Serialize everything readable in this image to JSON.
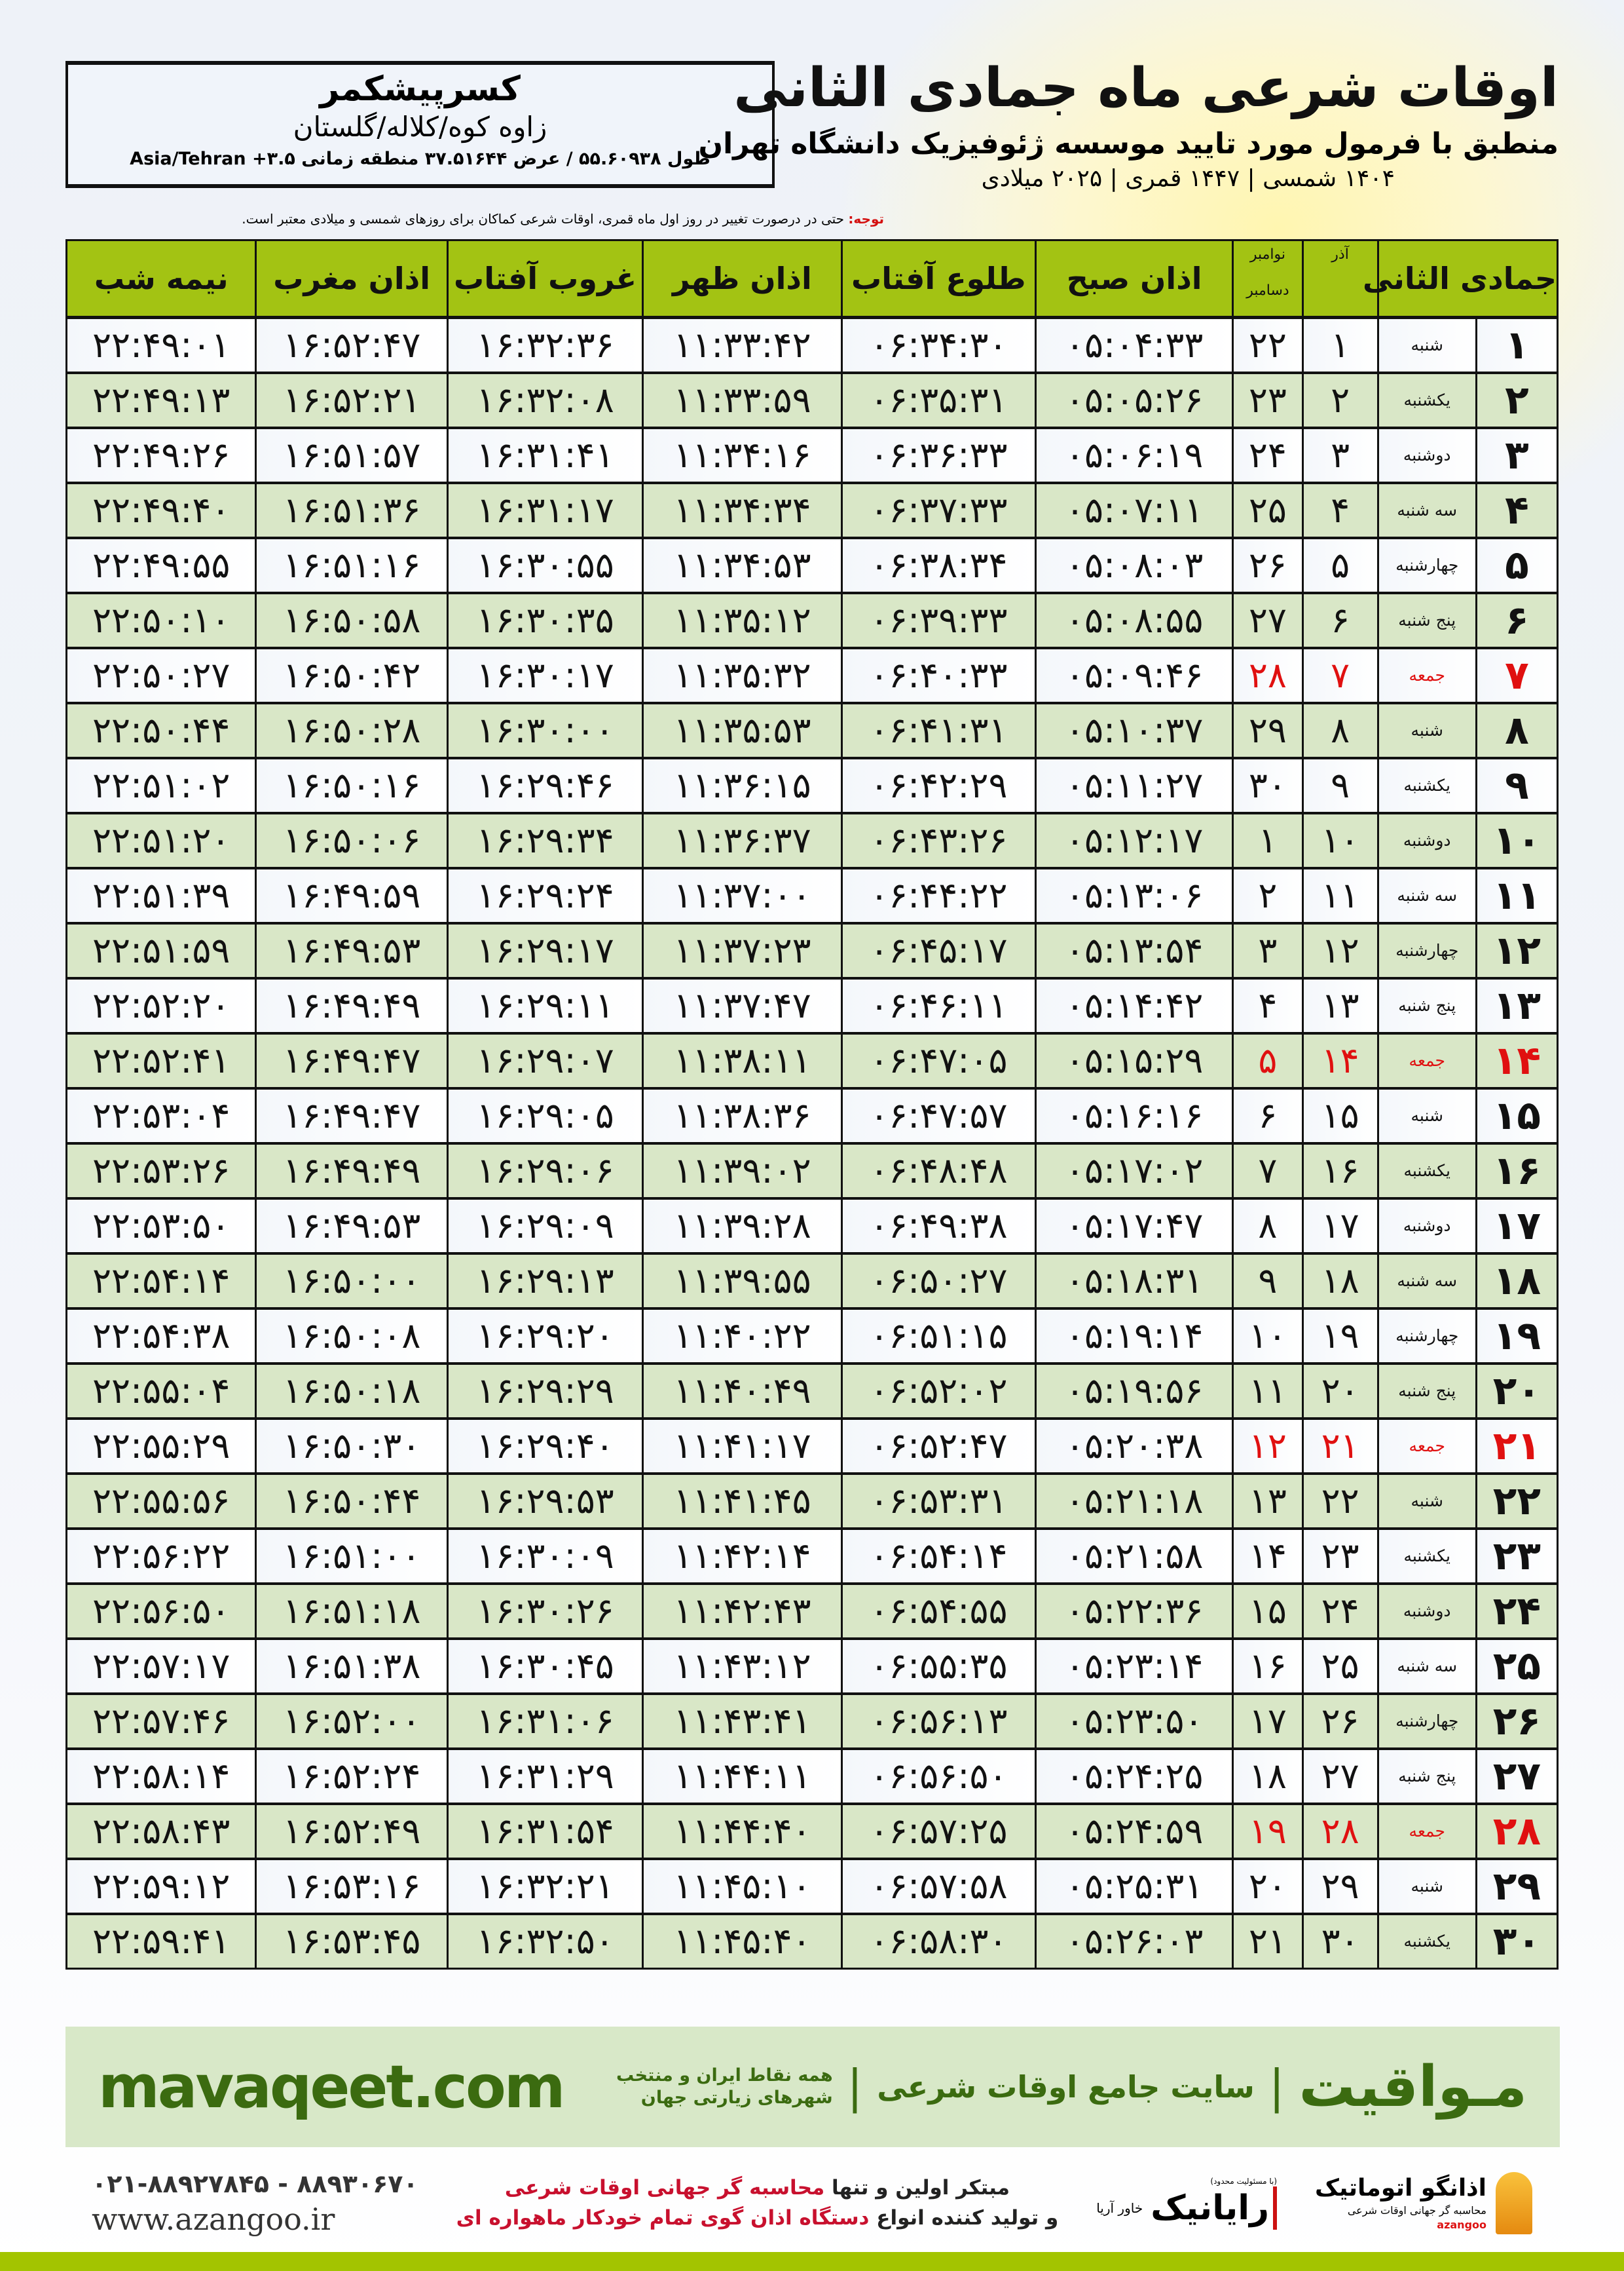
{
  "header": {
    "title": "اوقات شرعی ماه جمادی الثانی",
    "subtitle": "منطبق با فرمول مورد تایید موسسه ژئوفیزیک دانشگاه تهران",
    "years": "۱۴۰۴ شمسی | ۱۴۴۷ قمری | ۲۰۲۵ میلادی"
  },
  "location": {
    "city": "کسرپیشکمر",
    "region": "زاوه کوه/کلاله/گلستان",
    "coords": "طول ۵۵.۶۰۹۳۸ / عرض ۳۷.۵۱۶۴۴ منطقه زمانی ۳.۵+ Asia/Tehran"
  },
  "note": {
    "label": "توجه:",
    "text": " حتی در درصورت تغییر در روز اول ماه قمری، اوقات شرعی کماکان برای روزهای شمسی و میلادی معتبر است."
  },
  "columns": {
    "hijri": "جمادی الثانی",
    "azar": "آذر",
    "greg_top": "نوامبر",
    "greg_bottom": "دسامبر",
    "fajr": "اذان صبح",
    "sunrise": "طلوع آفتاب",
    "dhuhr": "اذان ظهر",
    "sunset": "غروب آفتاب",
    "maghrib": "اذان مغرب",
    "midnight": "نیمه شب"
  },
  "holiday_weekday": "جمعه",
  "colors": {
    "header_green": "#a3c313",
    "row_green": "#d9e7c7",
    "holiday_red": "#e01010",
    "brand_green": "#3b6b10"
  },
  "rows": [
    [
      "۱",
      "شنبه",
      "۱",
      "۲۲",
      "۰۵:۰۴:۳۳",
      "۰۶:۳۴:۳۰",
      "۱۱:۳۳:۴۲",
      "۱۶:۳۲:۳۶",
      "۱۶:۵۲:۴۷",
      "۲۲:۴۹:۰۱"
    ],
    [
      "۲",
      "یکشنبه",
      "۲",
      "۲۳",
      "۰۵:۰۵:۲۶",
      "۰۶:۳۵:۳۱",
      "۱۱:۳۳:۵۹",
      "۱۶:۳۲:۰۸",
      "۱۶:۵۲:۲۱",
      "۲۲:۴۹:۱۳"
    ],
    [
      "۳",
      "دوشنبه",
      "۳",
      "۲۴",
      "۰۵:۰۶:۱۹",
      "۰۶:۳۶:۳۳",
      "۱۱:۳۴:۱۶",
      "۱۶:۳۱:۴۱",
      "۱۶:۵۱:۵۷",
      "۲۲:۴۹:۲۶"
    ],
    [
      "۴",
      "سه شنبه",
      "۴",
      "۲۵",
      "۰۵:۰۷:۱۱",
      "۰۶:۳۷:۳۳",
      "۱۱:۳۴:۳۴",
      "۱۶:۳۱:۱۷",
      "۱۶:۵۱:۳۶",
      "۲۲:۴۹:۴۰"
    ],
    [
      "۵",
      "چهارشنبه",
      "۵",
      "۲۶",
      "۰۵:۰۸:۰۳",
      "۰۶:۳۸:۳۴",
      "۱۱:۳۴:۵۳",
      "۱۶:۳۰:۵۵",
      "۱۶:۵۱:۱۶",
      "۲۲:۴۹:۵۵"
    ],
    [
      "۶",
      "پنج شنبه",
      "۶",
      "۲۷",
      "۰۵:۰۸:۵۵",
      "۰۶:۳۹:۳۳",
      "۱۱:۳۵:۱۲",
      "۱۶:۳۰:۳۵",
      "۱۶:۵۰:۵۸",
      "۲۲:۵۰:۱۰"
    ],
    [
      "۷",
      "جمعه",
      "۷",
      "۲۸",
      "۰۵:۰۹:۴۶",
      "۰۶:۴۰:۳۳",
      "۱۱:۳۵:۳۲",
      "۱۶:۳۰:۱۷",
      "۱۶:۵۰:۴۲",
      "۲۲:۵۰:۲۷"
    ],
    [
      "۸",
      "شنبه",
      "۸",
      "۲۹",
      "۰۵:۱۰:۳۷",
      "۰۶:۴۱:۳۱",
      "۱۱:۳۵:۵۳",
      "۱۶:۳۰:۰۰",
      "۱۶:۵۰:۲۸",
      "۲۲:۵۰:۴۴"
    ],
    [
      "۹",
      "یکشنبه",
      "۹",
      "۳۰",
      "۰۵:۱۱:۲۷",
      "۰۶:۴۲:۲۹",
      "۱۱:۳۶:۱۵",
      "۱۶:۲۹:۴۶",
      "۱۶:۵۰:۱۶",
      "۲۲:۵۱:۰۲"
    ],
    [
      "۱۰",
      "دوشنبه",
      "۱۰",
      "۱",
      "۰۵:۱۲:۱۷",
      "۰۶:۴۳:۲۶",
      "۱۱:۳۶:۳۷",
      "۱۶:۲۹:۳۴",
      "۱۶:۵۰:۰۶",
      "۲۲:۵۱:۲۰"
    ],
    [
      "۱۱",
      "سه شنبه",
      "۱۱",
      "۲",
      "۰۵:۱۳:۰۶",
      "۰۶:۴۴:۲۲",
      "۱۱:۳۷:۰۰",
      "۱۶:۲۹:۲۴",
      "۱۶:۴۹:۵۹",
      "۲۲:۵۱:۳۹"
    ],
    [
      "۱۲",
      "چهارشنبه",
      "۱۲",
      "۳",
      "۰۵:۱۳:۵۴",
      "۰۶:۴۵:۱۷",
      "۱۱:۳۷:۲۳",
      "۱۶:۲۹:۱۷",
      "۱۶:۴۹:۵۳",
      "۲۲:۵۱:۵۹"
    ],
    [
      "۱۳",
      "پنج شنبه",
      "۱۳",
      "۴",
      "۰۵:۱۴:۴۲",
      "۰۶:۴۶:۱۱",
      "۱۱:۳۷:۴۷",
      "۱۶:۲۹:۱۱",
      "۱۶:۴۹:۴۹",
      "۲۲:۵۲:۲۰"
    ],
    [
      "۱۴",
      "جمعه",
      "۱۴",
      "۵",
      "۰۵:۱۵:۲۹",
      "۰۶:۴۷:۰۵",
      "۱۱:۳۸:۱۱",
      "۱۶:۲۹:۰۷",
      "۱۶:۴۹:۴۷",
      "۲۲:۵۲:۴۱"
    ],
    [
      "۱۵",
      "شنبه",
      "۱۵",
      "۶",
      "۰۵:۱۶:۱۶",
      "۰۶:۴۷:۵۷",
      "۱۱:۳۸:۳۶",
      "۱۶:۲۹:۰۵",
      "۱۶:۴۹:۴۷",
      "۲۲:۵۳:۰۴"
    ],
    [
      "۱۶",
      "یکشنبه",
      "۱۶",
      "۷",
      "۰۵:۱۷:۰۲",
      "۰۶:۴۸:۴۸",
      "۱۱:۳۹:۰۲",
      "۱۶:۲۹:۰۶",
      "۱۶:۴۹:۴۹",
      "۲۲:۵۳:۲۶"
    ],
    [
      "۱۷",
      "دوشنبه",
      "۱۷",
      "۸",
      "۰۵:۱۷:۴۷",
      "۰۶:۴۹:۳۸",
      "۱۱:۳۹:۲۸",
      "۱۶:۲۹:۰۹",
      "۱۶:۴۹:۵۳",
      "۲۲:۵۳:۵۰"
    ],
    [
      "۱۸",
      "سه شنبه",
      "۱۸",
      "۹",
      "۰۵:۱۸:۳۱",
      "۰۶:۵۰:۲۷",
      "۱۱:۳۹:۵۵",
      "۱۶:۲۹:۱۳",
      "۱۶:۵۰:۰۰",
      "۲۲:۵۴:۱۴"
    ],
    [
      "۱۹",
      "چهارشنبه",
      "۱۹",
      "۱۰",
      "۰۵:۱۹:۱۴",
      "۰۶:۵۱:۱۵",
      "۱۱:۴۰:۲۲",
      "۱۶:۲۹:۲۰",
      "۱۶:۵۰:۰۸",
      "۲۲:۵۴:۳۸"
    ],
    [
      "۲۰",
      "پنج شنبه",
      "۲۰",
      "۱۱",
      "۰۵:۱۹:۵۶",
      "۰۶:۵۲:۰۲",
      "۱۱:۴۰:۴۹",
      "۱۶:۲۹:۲۹",
      "۱۶:۵۰:۱۸",
      "۲۲:۵۵:۰۴"
    ],
    [
      "۲۱",
      "جمعه",
      "۲۱",
      "۱۲",
      "۰۵:۲۰:۳۸",
      "۰۶:۵۲:۴۷",
      "۱۱:۴۱:۱۷",
      "۱۶:۲۹:۴۰",
      "۱۶:۵۰:۳۰",
      "۲۲:۵۵:۲۹"
    ],
    [
      "۲۲",
      "شنبه",
      "۲۲",
      "۱۳",
      "۰۵:۲۱:۱۸",
      "۰۶:۵۳:۳۱",
      "۱۱:۴۱:۴۵",
      "۱۶:۲۹:۵۳",
      "۱۶:۵۰:۴۴",
      "۲۲:۵۵:۵۶"
    ],
    [
      "۲۳",
      "یکشنبه",
      "۲۳",
      "۱۴",
      "۰۵:۲۱:۵۸",
      "۰۶:۵۴:۱۴",
      "۱۱:۴۲:۱۴",
      "۱۶:۳۰:۰۹",
      "۱۶:۵۱:۰۰",
      "۲۲:۵۶:۲۲"
    ],
    [
      "۲۴",
      "دوشنبه",
      "۲۴",
      "۱۵",
      "۰۵:۲۲:۳۶",
      "۰۶:۵۴:۵۵",
      "۱۱:۴۲:۴۳",
      "۱۶:۳۰:۲۶",
      "۱۶:۵۱:۱۸",
      "۲۲:۵۶:۵۰"
    ],
    [
      "۲۵",
      "سه شنبه",
      "۲۵",
      "۱۶",
      "۰۵:۲۳:۱۴",
      "۰۶:۵۵:۳۵",
      "۱۱:۴۳:۱۲",
      "۱۶:۳۰:۴۵",
      "۱۶:۵۱:۳۸",
      "۲۲:۵۷:۱۷"
    ],
    [
      "۲۶",
      "چهارشنبه",
      "۲۶",
      "۱۷",
      "۰۵:۲۳:۵۰",
      "۰۶:۵۶:۱۳",
      "۱۱:۴۳:۴۱",
      "۱۶:۳۱:۰۶",
      "۱۶:۵۲:۰۰",
      "۲۲:۵۷:۴۶"
    ],
    [
      "۲۷",
      "پنج شنبه",
      "۲۷",
      "۱۸",
      "۰۵:۲۴:۲۵",
      "۰۶:۵۶:۵۰",
      "۱۱:۴۴:۱۱",
      "۱۶:۳۱:۲۹",
      "۱۶:۵۲:۲۴",
      "۲۲:۵۸:۱۴"
    ],
    [
      "۲۸",
      "جمعه",
      "۲۸",
      "۱۹",
      "۰۵:۲۴:۵۹",
      "۰۶:۵۷:۲۵",
      "۱۱:۴۴:۴۰",
      "۱۶:۳۱:۵۴",
      "۱۶:۵۲:۴۹",
      "۲۲:۵۸:۴۳"
    ],
    [
      "۲۹",
      "شنبه",
      "۲۹",
      "۲۰",
      "۰۵:۲۵:۳۱",
      "۰۶:۵۷:۵۸",
      "۱۱:۴۵:۱۰",
      "۱۶:۳۲:۲۱",
      "۱۶:۵۳:۱۶",
      "۲۲:۵۹:۱۲"
    ],
    [
      "۳۰",
      "یکشنبه",
      "۳۰",
      "۲۱",
      "۰۵:۲۶:۰۳",
      "۰۶:۵۸:۳۰",
      "۱۱:۴۵:۴۰",
      "۱۶:۳۲:۵۰",
      "۱۶:۵۳:۴۵",
      "۲۲:۵۹:۴۱"
    ]
  ],
  "banner": {
    "brand": "مـواقیت",
    "site": "سایت جامع اوقات شرعی",
    "tagline": "همه نقاط ایران و منتخب شهرهای زیارتی جهان",
    "url": "mavaqeet.com"
  },
  "footer": {
    "azangoo_name": "اذانگو اتوماتیک",
    "azangoo_sub": "محاسبه گر جهانی اوقات شرعی",
    "azangoo_latin": "azangoo",
    "rayanik_name": "رایانیک",
    "rayanik_sub": "خاور آریا",
    "rayanik_note": "(با مسئولیت محدود)",
    "line1_a": "مبتکر اولین و تنها ",
    "line1_b": "محاسبه گر جهانی اوقات شرعی",
    "line2_a": "و تولید کننده انواع ",
    "line2_b": "دستگاه اذان گوی تمام خودکار ماهواره ای",
    "phone": "۰۲۱-۸۸۹۲۷۸۴۵ - ۸۸۹۳۰۶۷۰",
    "website": "www.azangoo.ir"
  }
}
